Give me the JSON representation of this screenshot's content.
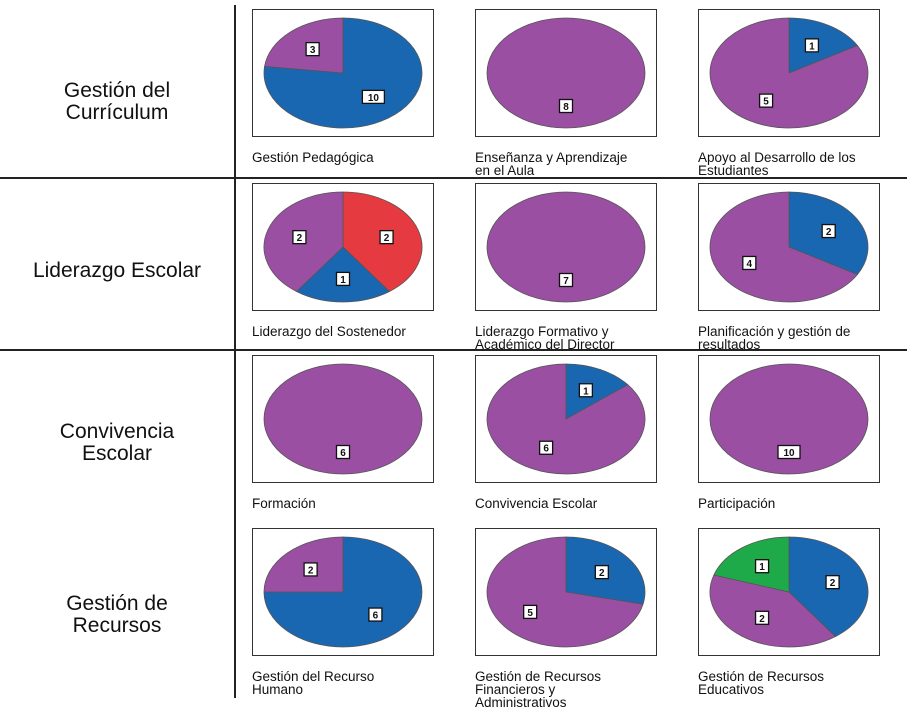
{
  "colors": {
    "purple": "#9B4FA3",
    "blue": "#1A67B1",
    "red": "#E53A3F",
    "green": "#1FAA4A"
  },
  "rows": [
    {
      "label": "Gestión del\nCurrículum"
    },
    {
      "label": "Liderazgo Escolar"
    },
    {
      "label": "Convivencia\nEscolar"
    },
    {
      "label": "Gestión de\nRecursos"
    }
  ],
  "chart_data": [
    {
      "type": "pie",
      "title": "Gestión Pedagógica",
      "categories": [
        "blue",
        "purple"
      ],
      "values": [
        10,
        3
      ]
    },
    {
      "type": "pie",
      "title": "Enseñanza y Aprendizaje\nen el Aula",
      "categories": [
        "purple"
      ],
      "values": [
        8
      ]
    },
    {
      "type": "pie",
      "title": "Apoyo al Desarrollo de los\nEstudiantes",
      "categories": [
        "blue",
        "purple"
      ],
      "values": [
        1,
        5
      ]
    },
    {
      "type": "pie",
      "title": "Liderazgo del Sostenedor",
      "categories": [
        "red",
        "blue",
        "purple"
      ],
      "values": [
        2,
        1,
        2
      ]
    },
    {
      "type": "pie",
      "title": "Liderazgo Formativo y\nAcadémico del Director",
      "categories": [
        "purple"
      ],
      "values": [
        7
      ]
    },
    {
      "type": "pie",
      "title": "Planificación y gestión de\nresultados",
      "categories": [
        "blue",
        "purple"
      ],
      "values": [
        2,
        4
      ]
    },
    {
      "type": "pie",
      "title": "Formación",
      "categories": [
        "purple"
      ],
      "values": [
        6
      ]
    },
    {
      "type": "pie",
      "title": "Convivencia Escolar",
      "categories": [
        "blue",
        "purple"
      ],
      "values": [
        1,
        6
      ]
    },
    {
      "type": "pie",
      "title": "Participación",
      "categories": [
        "purple"
      ],
      "values": [
        10
      ]
    },
    {
      "type": "pie",
      "title": "Gestión del Recurso\nHumano",
      "categories": [
        "blue",
        "purple"
      ],
      "values": [
        6,
        2
      ]
    },
    {
      "type": "pie",
      "title": "Gestión de Recursos\nFinancieros y\nAdministrativos",
      "categories": [
        "blue",
        "purple"
      ],
      "values": [
        2,
        5
      ]
    },
    {
      "type": "pie",
      "title": "Gestión de Recursos\nEducativos",
      "categories": [
        "blue",
        "purple",
        "green"
      ],
      "values": [
        2,
        2,
        1
      ]
    }
  ]
}
